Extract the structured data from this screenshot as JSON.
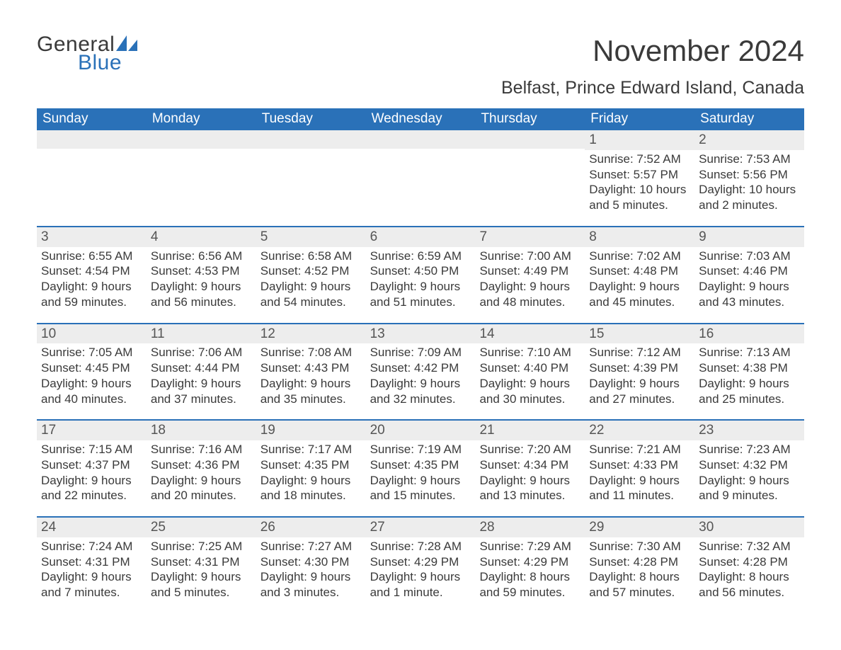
{
  "logo": {
    "text_general": "General",
    "text_blue": "Blue",
    "shape_color": "#2a71b8",
    "general_color": "#3a3a3a"
  },
  "title": "November 2024",
  "location": "Belfast, Prince Edward Island, Canada",
  "weekdays": [
    "Sunday",
    "Monday",
    "Tuesday",
    "Wednesday",
    "Thursday",
    "Friday",
    "Saturday"
  ],
  "style": {
    "header_bg": "#2a71b8",
    "header_text": "#ffffff",
    "daynum_bg": "#ededed",
    "daynum_text": "#555555",
    "row_border": "#2a71b8",
    "body_text": "#3a3a3a",
    "page_bg": "#ffffff",
    "title_fontsize": 42,
    "location_fontsize": 25,
    "weekday_fontsize": 19,
    "daynum_fontsize": 19,
    "body_fontsize": 17
  },
  "weeks": [
    [
      {
        "day": "",
        "sunrise": "",
        "sunset": "",
        "daylight": ""
      },
      {
        "day": "",
        "sunrise": "",
        "sunset": "",
        "daylight": ""
      },
      {
        "day": "",
        "sunrise": "",
        "sunset": "",
        "daylight": ""
      },
      {
        "day": "",
        "sunrise": "",
        "sunset": "",
        "daylight": ""
      },
      {
        "day": "",
        "sunrise": "",
        "sunset": "",
        "daylight": ""
      },
      {
        "day": "1",
        "sunrise": "Sunrise: 7:52 AM",
        "sunset": "Sunset: 5:57 PM",
        "daylight": "Daylight: 10 hours and 5 minutes."
      },
      {
        "day": "2",
        "sunrise": "Sunrise: 7:53 AM",
        "sunset": "Sunset: 5:56 PM",
        "daylight": "Daylight: 10 hours and 2 minutes."
      }
    ],
    [
      {
        "day": "3",
        "sunrise": "Sunrise: 6:55 AM",
        "sunset": "Sunset: 4:54 PM",
        "daylight": "Daylight: 9 hours and 59 minutes."
      },
      {
        "day": "4",
        "sunrise": "Sunrise: 6:56 AM",
        "sunset": "Sunset: 4:53 PM",
        "daylight": "Daylight: 9 hours and 56 minutes."
      },
      {
        "day": "5",
        "sunrise": "Sunrise: 6:58 AM",
        "sunset": "Sunset: 4:52 PM",
        "daylight": "Daylight: 9 hours and 54 minutes."
      },
      {
        "day": "6",
        "sunrise": "Sunrise: 6:59 AM",
        "sunset": "Sunset: 4:50 PM",
        "daylight": "Daylight: 9 hours and 51 minutes."
      },
      {
        "day": "7",
        "sunrise": "Sunrise: 7:00 AM",
        "sunset": "Sunset: 4:49 PM",
        "daylight": "Daylight: 9 hours and 48 minutes."
      },
      {
        "day": "8",
        "sunrise": "Sunrise: 7:02 AM",
        "sunset": "Sunset: 4:48 PM",
        "daylight": "Daylight: 9 hours and 45 minutes."
      },
      {
        "day": "9",
        "sunrise": "Sunrise: 7:03 AM",
        "sunset": "Sunset: 4:46 PM",
        "daylight": "Daylight: 9 hours and 43 minutes."
      }
    ],
    [
      {
        "day": "10",
        "sunrise": "Sunrise: 7:05 AM",
        "sunset": "Sunset: 4:45 PM",
        "daylight": "Daylight: 9 hours and 40 minutes."
      },
      {
        "day": "11",
        "sunrise": "Sunrise: 7:06 AM",
        "sunset": "Sunset: 4:44 PM",
        "daylight": "Daylight: 9 hours and 37 minutes."
      },
      {
        "day": "12",
        "sunrise": "Sunrise: 7:08 AM",
        "sunset": "Sunset: 4:43 PM",
        "daylight": "Daylight: 9 hours and 35 minutes."
      },
      {
        "day": "13",
        "sunrise": "Sunrise: 7:09 AM",
        "sunset": "Sunset: 4:42 PM",
        "daylight": "Daylight: 9 hours and 32 minutes."
      },
      {
        "day": "14",
        "sunrise": "Sunrise: 7:10 AM",
        "sunset": "Sunset: 4:40 PM",
        "daylight": "Daylight: 9 hours and 30 minutes."
      },
      {
        "day": "15",
        "sunrise": "Sunrise: 7:12 AM",
        "sunset": "Sunset: 4:39 PM",
        "daylight": "Daylight: 9 hours and 27 minutes."
      },
      {
        "day": "16",
        "sunrise": "Sunrise: 7:13 AM",
        "sunset": "Sunset: 4:38 PM",
        "daylight": "Daylight: 9 hours and 25 minutes."
      }
    ],
    [
      {
        "day": "17",
        "sunrise": "Sunrise: 7:15 AM",
        "sunset": "Sunset: 4:37 PM",
        "daylight": "Daylight: 9 hours and 22 minutes."
      },
      {
        "day": "18",
        "sunrise": "Sunrise: 7:16 AM",
        "sunset": "Sunset: 4:36 PM",
        "daylight": "Daylight: 9 hours and 20 minutes."
      },
      {
        "day": "19",
        "sunrise": "Sunrise: 7:17 AM",
        "sunset": "Sunset: 4:35 PM",
        "daylight": "Daylight: 9 hours and 18 minutes."
      },
      {
        "day": "20",
        "sunrise": "Sunrise: 7:19 AM",
        "sunset": "Sunset: 4:35 PM",
        "daylight": "Daylight: 9 hours and 15 minutes."
      },
      {
        "day": "21",
        "sunrise": "Sunrise: 7:20 AM",
        "sunset": "Sunset: 4:34 PM",
        "daylight": "Daylight: 9 hours and 13 minutes."
      },
      {
        "day": "22",
        "sunrise": "Sunrise: 7:21 AM",
        "sunset": "Sunset: 4:33 PM",
        "daylight": "Daylight: 9 hours and 11 minutes."
      },
      {
        "day": "23",
        "sunrise": "Sunrise: 7:23 AM",
        "sunset": "Sunset: 4:32 PM",
        "daylight": "Daylight: 9 hours and 9 minutes."
      }
    ],
    [
      {
        "day": "24",
        "sunrise": "Sunrise: 7:24 AM",
        "sunset": "Sunset: 4:31 PM",
        "daylight": "Daylight: 9 hours and 7 minutes."
      },
      {
        "day": "25",
        "sunrise": "Sunrise: 7:25 AM",
        "sunset": "Sunset: 4:31 PM",
        "daylight": "Daylight: 9 hours and 5 minutes."
      },
      {
        "day": "26",
        "sunrise": "Sunrise: 7:27 AM",
        "sunset": "Sunset: 4:30 PM",
        "daylight": "Daylight: 9 hours and 3 minutes."
      },
      {
        "day": "27",
        "sunrise": "Sunrise: 7:28 AM",
        "sunset": "Sunset: 4:29 PM",
        "daylight": "Daylight: 9 hours and 1 minute."
      },
      {
        "day": "28",
        "sunrise": "Sunrise: 7:29 AM",
        "sunset": "Sunset: 4:29 PM",
        "daylight": "Daylight: 8 hours and 59 minutes."
      },
      {
        "day": "29",
        "sunrise": "Sunrise: 7:30 AM",
        "sunset": "Sunset: 4:28 PM",
        "daylight": "Daylight: 8 hours and 57 minutes."
      },
      {
        "day": "30",
        "sunrise": "Sunrise: 7:32 AM",
        "sunset": "Sunset: 4:28 PM",
        "daylight": "Daylight: 8 hours and 56 minutes."
      }
    ]
  ]
}
